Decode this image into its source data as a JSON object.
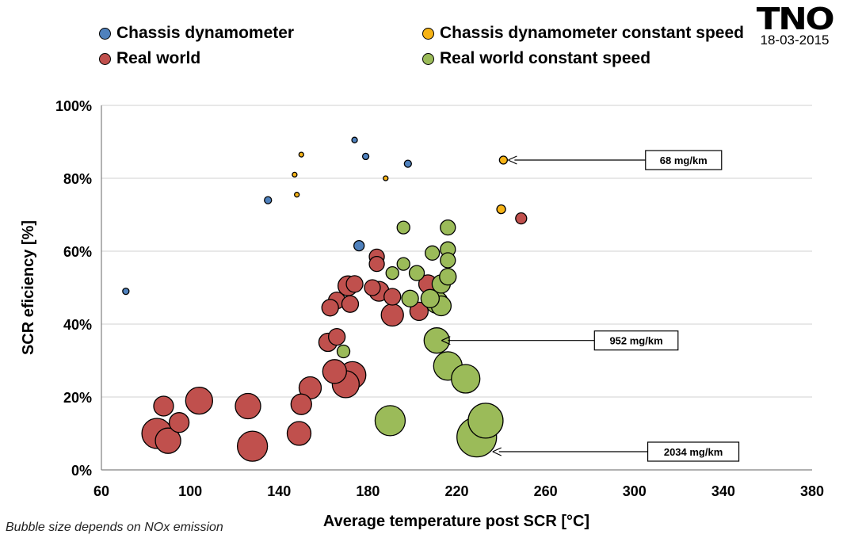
{
  "logo": {
    "mark": "TNO",
    "date": "18-03-2015"
  },
  "footnote": "Bubble size depends on NOx emission",
  "colors": {
    "chassis": "#4f81bd",
    "chassis_constant": "#f6b316",
    "real_world": "#c0504d",
    "real_world_constant": "#9bbb59",
    "grid": "#d0d0d0"
  },
  "chart_data": {
    "type": "scatter",
    "xlabel": "Average temperature post SCR [°C]",
    "ylabel": "SCR eficiency [%]",
    "xlim": [
      60,
      380
    ],
    "ylim": [
      0,
      100
    ],
    "xticks": [
      60,
      100,
      140,
      180,
      220,
      260,
      300,
      340,
      380
    ],
    "xtick_labels": [
      "60",
      "100",
      "140",
      "180",
      "220",
      "260",
      "300",
      "340",
      "380"
    ],
    "yticks": [
      0,
      20,
      40,
      60,
      80,
      100
    ],
    "ytick_labels": [
      "0%",
      "20%",
      "40%",
      "60%",
      "80%",
      "100%"
    ],
    "grid": "horizontal",
    "legend_position": "top",
    "bubble_size_meaning": "NOx emission",
    "series": [
      {
        "name": "Chassis dynamometer",
        "color_key": "chassis",
        "points": [
          {
            "x": 71,
            "y": 49,
            "size": 8
          },
          {
            "x": 135,
            "y": 74,
            "size": 9
          },
          {
            "x": 174,
            "y": 90.5,
            "size": 7
          },
          {
            "x": 179,
            "y": 86,
            "size": 8
          },
          {
            "x": 198,
            "y": 84,
            "size": 9
          },
          {
            "x": 176,
            "y": 61.5,
            "size": 13
          }
        ]
      },
      {
        "name": "Chassis dynamometer constant speed",
        "color_key": "chassis_constant",
        "points": [
          {
            "x": 150,
            "y": 86.5,
            "size": 6
          },
          {
            "x": 147,
            "y": 81,
            "size": 6
          },
          {
            "x": 148,
            "y": 75.5,
            "size": 6
          },
          {
            "x": 188,
            "y": 80,
            "size": 6
          },
          {
            "x": 241,
            "y": 85,
            "size": 10
          },
          {
            "x": 240,
            "y": 71.5,
            "size": 11
          }
        ]
      },
      {
        "name": "Real world",
        "color_key": "real_world",
        "points": [
          {
            "x": 249,
            "y": 69,
            "size": 14
          },
          {
            "x": 184,
            "y": 58.5,
            "size": 19
          },
          {
            "x": 184,
            "y": 56.5,
            "size": 19
          },
          {
            "x": 171,
            "y": 50.5,
            "size": 25
          },
          {
            "x": 174,
            "y": 51,
            "size": 21
          },
          {
            "x": 182,
            "y": 50,
            "size": 20
          },
          {
            "x": 185,
            "y": 49,
            "size": 25
          },
          {
            "x": 166,
            "y": 46.5,
            "size": 21
          },
          {
            "x": 163,
            "y": 44.5,
            "size": 21
          },
          {
            "x": 172,
            "y": 45.5,
            "size": 21
          },
          {
            "x": 191,
            "y": 47.5,
            "size": 21
          },
          {
            "x": 207,
            "y": 51,
            "size": 23
          },
          {
            "x": 203,
            "y": 43.5,
            "size": 23
          },
          {
            "x": 191,
            "y": 42.5,
            "size": 28
          },
          {
            "x": 166,
            "y": 36.5,
            "size": 21
          },
          {
            "x": 162,
            "y": 35,
            "size": 23
          },
          {
            "x": 165,
            "y": 27,
            "size": 30
          },
          {
            "x": 173,
            "y": 26,
            "size": 34
          },
          {
            "x": 170,
            "y": 23.5,
            "size": 34
          },
          {
            "x": 154,
            "y": 22.5,
            "size": 28
          },
          {
            "x": 150,
            "y": 18,
            "size": 26
          },
          {
            "x": 88,
            "y": 17.5,
            "size": 25
          },
          {
            "x": 95,
            "y": 13,
            "size": 25
          },
          {
            "x": 104,
            "y": 19,
            "size": 34
          },
          {
            "x": 126,
            "y": 17.5,
            "size": 32
          },
          {
            "x": 85,
            "y": 10,
            "size": 38
          },
          {
            "x": 90,
            "y": 8,
            "size": 32
          },
          {
            "x": 149,
            "y": 10,
            "size": 30
          },
          {
            "x": 128,
            "y": 6.5,
            "size": 38
          }
        ]
      },
      {
        "name": "Real world constant speed",
        "color_key": "real_world_constant",
        "points": [
          {
            "x": 196,
            "y": 66.5,
            "size": 16
          },
          {
            "x": 216,
            "y": 66.5,
            "size": 19
          },
          {
            "x": 209,
            "y": 59.5,
            "size": 18
          },
          {
            "x": 216,
            "y": 60.5,
            "size": 19
          },
          {
            "x": 216,
            "y": 57.5,
            "size": 19
          },
          {
            "x": 196,
            "y": 56.5,
            "size": 16
          },
          {
            "x": 191,
            "y": 54,
            "size": 16
          },
          {
            "x": 202,
            "y": 54,
            "size": 19
          },
          {
            "x": 216,
            "y": 53,
            "size": 21
          },
          {
            "x": 213,
            "y": 51,
            "size": 23
          },
          {
            "x": 199,
            "y": 47,
            "size": 21
          },
          {
            "x": 208,
            "y": 47,
            "size": 23
          },
          {
            "x": 211,
            "y": 46,
            "size": 28
          },
          {
            "x": 213,
            "y": 45,
            "size": 25
          },
          {
            "x": 169,
            "y": 32.5,
            "size": 16
          },
          {
            "x": 211,
            "y": 35.5,
            "size": 32
          },
          {
            "x": 216,
            "y": 28.5,
            "size": 36
          },
          {
            "x": 224,
            "y": 25,
            "size": 36
          },
          {
            "x": 190,
            "y": 13.5,
            "size": 38
          },
          {
            "x": 233,
            "y": 13.5,
            "size": 44
          },
          {
            "x": 229,
            "y": 9,
            "size": 50
          }
        ]
      }
    ],
    "annotations": [
      {
        "text": "68 mg/km",
        "target": {
          "x": 241,
          "y": 85
        },
        "label_at": {
          "x": 305,
          "y": 85
        }
      },
      {
        "text": "952 mg/km",
        "target": {
          "x": 211,
          "y": 35.5
        },
        "label_at": {
          "x": 282,
          "y": 35.5
        }
      },
      {
        "text": "2034 mg/km",
        "target": {
          "x": 234,
          "y": 5
        },
        "label_at": {
          "x": 306,
          "y": 5
        }
      }
    ]
  }
}
